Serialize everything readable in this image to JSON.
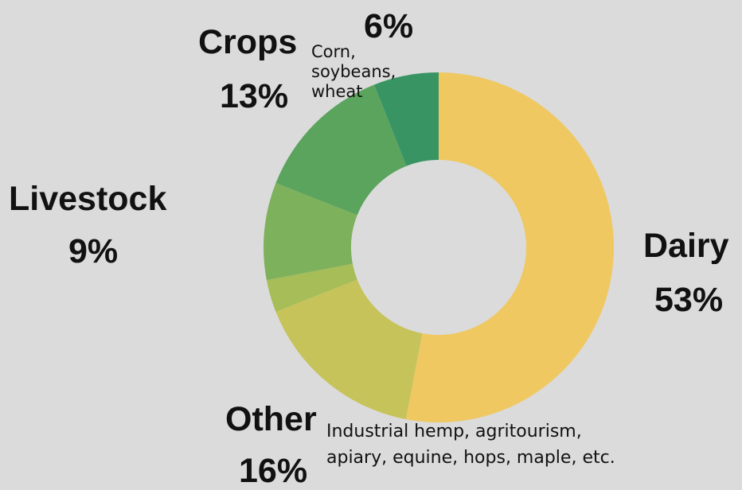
{
  "chart_data": {
    "type": "pie",
    "style": "donut",
    "slices": [
      {
        "name": "Dairy",
        "value": 53,
        "value_label": "53%",
        "color": "#efc862"
      },
      {
        "name": "Other",
        "value": 16,
        "value_label": "16%",
        "color": "#c7c35b",
        "note": "Industrial hemp, agritourism, apiary, equine, hops, maple, etc."
      },
      {
        "name": "",
        "value": 3,
        "value_label": "",
        "color": "#a6bd58"
      },
      {
        "name": "Livestock",
        "value": 9,
        "value_label": "9%",
        "color": "#7eb15c"
      },
      {
        "name": "Crops",
        "value": 13,
        "value_label": "13%",
        "color": "#5ba45d"
      },
      {
        "name": "",
        "value": 6,
        "value_label": "6%",
        "color": "#389563",
        "note": "Corn, soybeans, wheat"
      }
    ],
    "legend": "none"
  }
}
